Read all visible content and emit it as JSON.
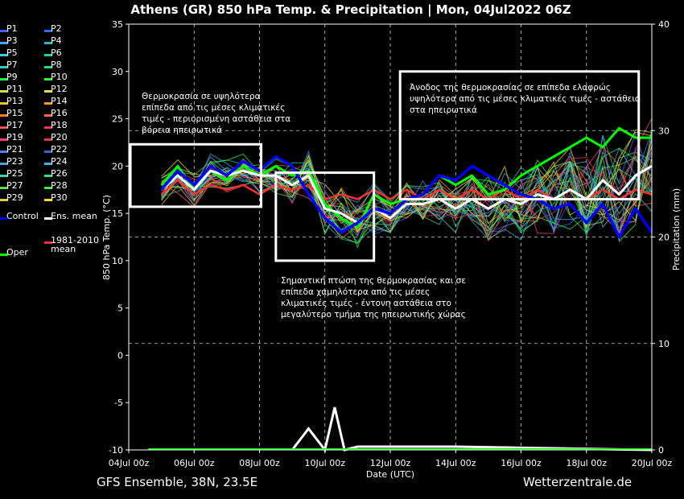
{
  "chart_data": {
    "type": "line",
    "title": "Athens  (GR)  850 hPa Temp. & Precipitation | Mon, 04Jul2022 06Z",
    "ylabel": "850 hPa Temp. (°C)",
    "y2label": "Precipitation (mm)",
    "xlabel": "Date (UTC)",
    "ylim": [
      -10,
      35
    ],
    "y2lim": [
      0,
      40
    ],
    "yticks": [
      -10,
      -5,
      0,
      5,
      10,
      15,
      20,
      25,
      30,
      35
    ],
    "y2ticks": [
      0,
      10,
      20,
      30,
      40
    ],
    "xlim": [
      0,
      16
    ],
    "xticks": [
      {
        "x": 0,
        "label": "04Jul 00z"
      },
      {
        "x": 2,
        "label": "06Jul 00z"
      },
      {
        "x": 4,
        "label": "08Jul 00z"
      },
      {
        "x": 6,
        "label": "10Jul 00z"
      },
      {
        "x": 8,
        "label": "12Jul 00z"
      },
      {
        "x": 10,
        "label": "14Jul 00z"
      },
      {
        "x": 12,
        "label": "16Jul 00z"
      },
      {
        "x": 14,
        "label": "18Jul 00z"
      },
      {
        "x": 16,
        "label": "20Jul 00z"
      }
    ],
    "grid": true,
    "legend_position": "left",
    "series": [
      {
        "name": "Control",
        "color": "#0000ff",
        "width": 3.5,
        "x": [
          1,
          1.5,
          2,
          2.5,
          3,
          3.5,
          4,
          4.5,
          5,
          5.5,
          6,
          6.5,
          7,
          7.5,
          8,
          8.5,
          9,
          9.5,
          10,
          10.5,
          11,
          11.5,
          12,
          12.5,
          13,
          13.5,
          14,
          14.5,
          15,
          15.5,
          16
        ],
        "y": [
          17.5,
          19.5,
          18,
          20,
          19,
          20.5,
          19.5,
          21,
          20,
          17,
          14.5,
          13,
          14,
          15.5,
          15,
          16.5,
          17,
          19,
          18.5,
          20,
          19,
          18,
          17,
          16.5,
          15.5,
          16,
          14,
          16,
          12.5,
          15.5,
          13
        ]
      },
      {
        "name": "Ens. mean",
        "color": "#ffffff",
        "width": 3,
        "x": [
          1,
          1.5,
          2,
          2.5,
          3,
          3.5,
          4,
          4.5,
          5,
          5.5,
          6,
          6.5,
          7,
          7.5,
          8,
          8.5,
          9,
          9.5,
          10,
          10.5,
          11,
          11.5,
          12,
          12.5,
          13,
          13.5,
          14,
          14.5,
          15,
          15.5,
          16
        ],
        "y": [
          17.5,
          19,
          17.5,
          19.5,
          19,
          19.5,
          19,
          19,
          18,
          19,
          15.5,
          15,
          14,
          15.5,
          14.5,
          16,
          16,
          16.5,
          15.5,
          16.5,
          15.5,
          16.5,
          16,
          17,
          16.5,
          17.5,
          16.5,
          18.5,
          17,
          19,
          20
        ]
      },
      {
        "name": "Oper",
        "color": "#00ff00",
        "width": 3,
        "x": [
          1,
          1.5,
          2,
          2.5,
          3,
          3.5,
          4,
          4.5,
          5,
          5.5,
          6,
          6.5,
          7,
          7.5,
          8,
          8.5,
          9,
          9.5,
          10,
          10.5,
          11,
          11.5,
          12,
          12.5,
          13,
          13.5,
          14,
          14.5,
          15,
          15.5,
          16
        ],
        "y": [
          18,
          20,
          17.5,
          19.5,
          18.5,
          20,
          19,
          20,
          19,
          19.5,
          16,
          14.5,
          13.5,
          17,
          16,
          16.5,
          17,
          19,
          18,
          19,
          17,
          17.5,
          19,
          20,
          21,
          22,
          23,
          22,
          24,
          23,
          23
        ]
      },
      {
        "name": "1981-2010 mean",
        "color": "#ff3030",
        "width": 2.5,
        "x": [
          1,
          1.5,
          2,
          2.5,
          3,
          3.5,
          4,
          4.5,
          5,
          5.5,
          6,
          6.5,
          7,
          7.5,
          8,
          8.5,
          9,
          9.5,
          10,
          10.5,
          11,
          11.5,
          12,
          12.5,
          13,
          13.5,
          14,
          14.5,
          15,
          15.5,
          16
        ],
        "y": [
          17,
          18.5,
          17,
          18,
          17.5,
          18,
          17,
          18,
          17.5,
          18,
          16.5,
          17,
          16.5,
          17.5,
          16.5,
          17.5,
          16.5,
          17.5,
          16.5,
          17.5,
          16.5,
          17.5,
          16.5,
          17.5,
          16.5,
          17.5,
          16.5,
          17.5,
          16.5,
          17.5,
          17
        ]
      }
    ],
    "precip_series": [
      {
        "name": "Ens. mean",
        "color": "#ffffff",
        "x": [
          5,
          5.5,
          6,
          6.3,
          6.6,
          7,
          8,
          10,
          16
        ],
        "y": [
          0,
          2,
          0,
          4,
          0,
          0.3,
          0.3,
          0.3,
          0
        ]
      }
    ],
    "legend": [
      {
        "label": "P1",
        "color": "#4060ff"
      },
      {
        "label": "P2",
        "color": "#3070ff"
      },
      {
        "label": "P3",
        "color": "#4aa0ff"
      },
      {
        "label": "P4",
        "color": "#30b0d0"
      },
      {
        "label": "P5",
        "color": "#40c8e0"
      },
      {
        "label": "P6",
        "color": "#20d0a0"
      },
      {
        "label": "P7",
        "color": "#30d0c0"
      },
      {
        "label": "P8",
        "color": "#20e080"
      },
      {
        "label": "P9",
        "color": "#20ff40"
      },
      {
        "label": "P10",
        "color": "#30ff30"
      },
      {
        "label": "P11",
        "color": "#c8e060"
      },
      {
        "label": "P12",
        "color": "#e0e040"
      },
      {
        "label": "P13",
        "color": "#f0c030"
      },
      {
        "label": "P14",
        "color": "#ffa020"
      },
      {
        "label": "P15",
        "color": "#ff8020"
      },
      {
        "label": "P16",
        "color": "#ff7040"
      },
      {
        "label": "P17",
        "color": "#ff5050"
      },
      {
        "label": "P18",
        "color": "#ff3060"
      },
      {
        "label": "P19",
        "color": "#ff4080"
      },
      {
        "label": "P20",
        "color": "#ff3040"
      },
      {
        "label": "P21",
        "color": "#5080ff"
      },
      {
        "label": "P22",
        "color": "#4060e0"
      },
      {
        "label": "P23",
        "color": "#50a0e0"
      },
      {
        "label": "P24",
        "color": "#40b0f0"
      },
      {
        "label": "P25",
        "color": "#40d0b0"
      },
      {
        "label": "P26",
        "color": "#30e090"
      },
      {
        "label": "P27",
        "color": "#50e050"
      },
      {
        "label": "P28",
        "color": "#40f040"
      },
      {
        "label": "P29",
        "color": "#e0d040"
      },
      {
        "label": "P30",
        "color": "#f0e020"
      },
      {
        "label": "Control",
        "color": "#0000ff"
      },
      {
        "label": "Ens. mean",
        "color": "#ffffff"
      },
      {
        "label": "Oper",
        "color": "#00ff00"
      },
      {
        "label": "1981-2010\nmean",
        "color": "#ff3030"
      }
    ],
    "annotations": [
      "Θερμοκρασία σε υψηλότερα\nεπίπεδα από τις μέσες κλιματικές\nτιμές - περιορισμένη αστάθεια στα\nβόρεια ηπειρωτικά",
      "Σημαντική πτώση της θερμοκρασίας και σε\nεπίπεδα χαμηλότερα από τις μέσες\nκλιματικές τιμές - έντονη αστάθεια στο\nμεγαλύτερο τμήμα της ηπειρωτικής χώρας",
      "Άνοδος της θερμοκρασίας σε επίπεδα ελαφρώς\nυψηλότερα από τις μέσες κλιματικές τιμές - αστάθεια\nστα ηπειρωτικά"
    ],
    "highlight_boxes": [
      {
        "x": [
          0.05,
          4.05
        ],
        "y": [
          15.7,
          22.3
        ]
      },
      {
        "x": [
          4.5,
          7.5
        ],
        "y": [
          10,
          19.3
        ]
      },
      {
        "x": [
          8.3,
          15.6
        ],
        "y": [
          16.5,
          30
        ]
      }
    ]
  },
  "footer": {
    "left": "GFS Ensemble, 38N, 23.5E",
    "right": "Wetterzentrale.de"
  }
}
